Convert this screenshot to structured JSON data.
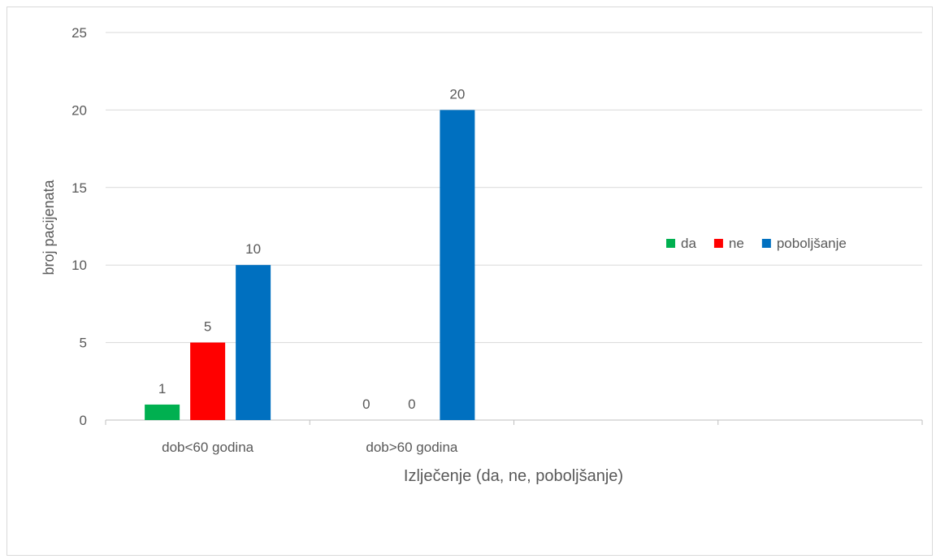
{
  "chart_data": {
    "type": "bar",
    "title": "",
    "xlabel": "Izlječenje (da, ne, poboljšanje)",
    "ylabel": "broj pacijenata",
    "ylim": [
      0,
      25
    ],
    "yticks": [
      0,
      5,
      10,
      15,
      20,
      25
    ],
    "categories": [
      "dob<60 godina",
      "dob>60 godina",
      "",
      ""
    ],
    "series": [
      {
        "name": "da",
        "color": "#00b050",
        "values": [
          1,
          0,
          null,
          null
        ]
      },
      {
        "name": "ne",
        "color": "#ff0000",
        "values": [
          5,
          0,
          null,
          null
        ]
      },
      {
        "name": "poboljšanje",
        "color": "#0070c0",
        "values": [
          10,
          20,
          null,
          null
        ]
      }
    ],
    "data_labels": true,
    "grid": true,
    "legend_position": "right"
  }
}
